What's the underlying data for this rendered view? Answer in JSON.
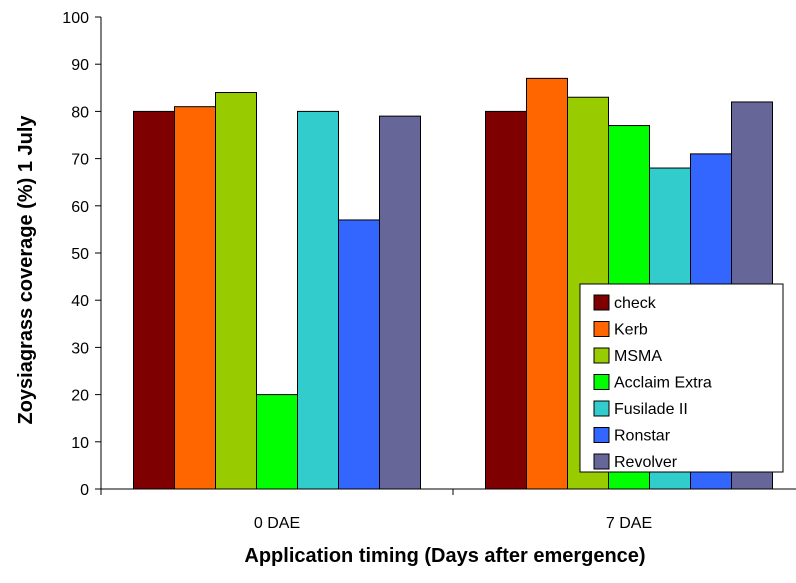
{
  "chart_data": {
    "type": "bar",
    "title": "",
    "xlabel": "Application timing (Days after emergence)",
    "ylabel": "Zoysiagrass coverage (%) 1 July",
    "ylim": [
      0,
      100
    ],
    "yticks": [
      0,
      10,
      20,
      30,
      40,
      50,
      60,
      70,
      80,
      90,
      100
    ],
    "categories": [
      "0 DAE",
      "7 DAE"
    ],
    "grid": false,
    "legend_position": "bottom-right",
    "series": [
      {
        "name": "check",
        "color": "#7F0000",
        "values": [
          80,
          80
        ]
      },
      {
        "name": "Kerb",
        "color": "#FF6600",
        "values": [
          81,
          87
        ]
      },
      {
        "name": "MSMA",
        "color": "#99CC00",
        "values": [
          84,
          83
        ]
      },
      {
        "name": "Acclaim Extra",
        "color": "#00FF00",
        "values": [
          20,
          77
        ]
      },
      {
        "name": "Fusilade II",
        "color": "#33CCCC",
        "values": [
          80,
          68
        ]
      },
      {
        "name": "Ronstar",
        "color": "#3366FF",
        "values": [
          57,
          71
        ]
      },
      {
        "name": "Revolver",
        "color": "#666699",
        "values": [
          79,
          82
        ]
      }
    ]
  }
}
